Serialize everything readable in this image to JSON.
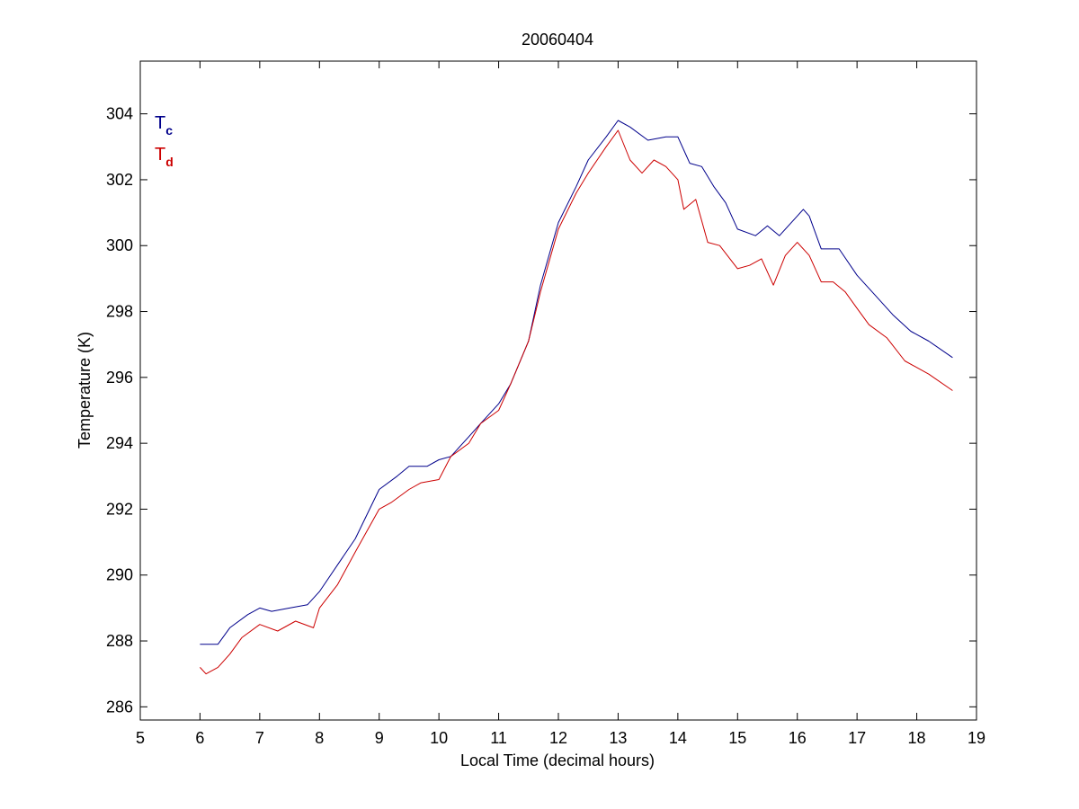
{
  "chart_data": {
    "type": "line",
    "title": "20060404",
    "xlabel": "Local Time (decimal hours)",
    "ylabel": "Temperature (K)",
    "xlim": [
      5,
      19
    ],
    "ylim": [
      285.6,
      305.6
    ],
    "xticks": [
      5,
      6,
      7,
      8,
      9,
      10,
      11,
      12,
      13,
      14,
      15,
      16,
      17,
      18,
      19
    ],
    "yticks": [
      286,
      288,
      290,
      292,
      294,
      296,
      298,
      300,
      302,
      304
    ],
    "grid": false,
    "legend_position": "top-left",
    "series": [
      {
        "name": "T",
        "subscript": "c",
        "color": "#00008b",
        "x": [
          6.0,
          6.3,
          6.5,
          6.8,
          7.0,
          7.2,
          7.5,
          7.8,
          8.0,
          8.3,
          8.6,
          9.0,
          9.3,
          9.5,
          9.8,
          10.0,
          10.2,
          10.5,
          10.7,
          11.0,
          11.2,
          11.5,
          11.7,
          12.0,
          12.3,
          12.5,
          12.8,
          13.0,
          13.2,
          13.5,
          13.8,
          14.0,
          14.2,
          14.4,
          14.6,
          14.8,
          15.0,
          15.3,
          15.5,
          15.7,
          16.0,
          16.1,
          16.2,
          16.4,
          16.7,
          17.0,
          17.3,
          17.6,
          17.9,
          18.2,
          18.6
        ],
        "y": [
          287.9,
          287.9,
          288.4,
          288.8,
          289.0,
          288.9,
          289.0,
          289.1,
          289.5,
          290.3,
          291.1,
          292.6,
          293.0,
          293.3,
          293.3,
          293.5,
          293.6,
          294.2,
          294.6,
          295.2,
          295.8,
          297.1,
          298.8,
          300.7,
          301.8,
          302.6,
          303.3,
          303.8,
          303.6,
          303.2,
          303.3,
          303.3,
          302.5,
          302.4,
          301.8,
          301.3,
          300.5,
          300.3,
          300.6,
          300.3,
          300.9,
          301.1,
          300.9,
          299.9,
          299.9,
          299.1,
          298.5,
          297.9,
          297.4,
          297.1,
          296.6
        ]
      },
      {
        "name": "T",
        "subscript": "d",
        "color": "#cc0000",
        "x": [
          6.0,
          6.1,
          6.3,
          6.5,
          6.7,
          7.0,
          7.3,
          7.6,
          7.9,
          8.0,
          8.3,
          8.6,
          9.0,
          9.2,
          9.5,
          9.7,
          10.0,
          10.2,
          10.5,
          10.7,
          11.0,
          11.2,
          11.5,
          11.7,
          12.0,
          12.3,
          12.5,
          12.8,
          13.0,
          13.2,
          13.4,
          13.6,
          13.8,
          14.0,
          14.1,
          14.3,
          14.5,
          14.7,
          15.0,
          15.2,
          15.4,
          15.6,
          15.8,
          16.0,
          16.2,
          16.4,
          16.6,
          16.8,
          17.0,
          17.2,
          17.5,
          17.8,
          18.2,
          18.6
        ],
        "y": [
          287.2,
          287.0,
          287.2,
          287.6,
          288.1,
          288.5,
          288.3,
          288.6,
          288.4,
          289.0,
          289.7,
          290.7,
          292.0,
          292.2,
          292.6,
          292.8,
          292.9,
          293.6,
          294.0,
          294.6,
          295.0,
          295.8,
          297.1,
          298.6,
          300.5,
          301.6,
          302.2,
          303.0,
          303.5,
          302.6,
          302.2,
          302.6,
          302.4,
          302.0,
          301.1,
          301.4,
          300.1,
          300.0,
          299.3,
          299.4,
          299.6,
          298.8,
          299.7,
          300.1,
          299.7,
          298.9,
          298.9,
          298.6,
          298.1,
          297.6,
          297.2,
          296.5,
          296.1,
          295.6
        ]
      }
    ]
  }
}
